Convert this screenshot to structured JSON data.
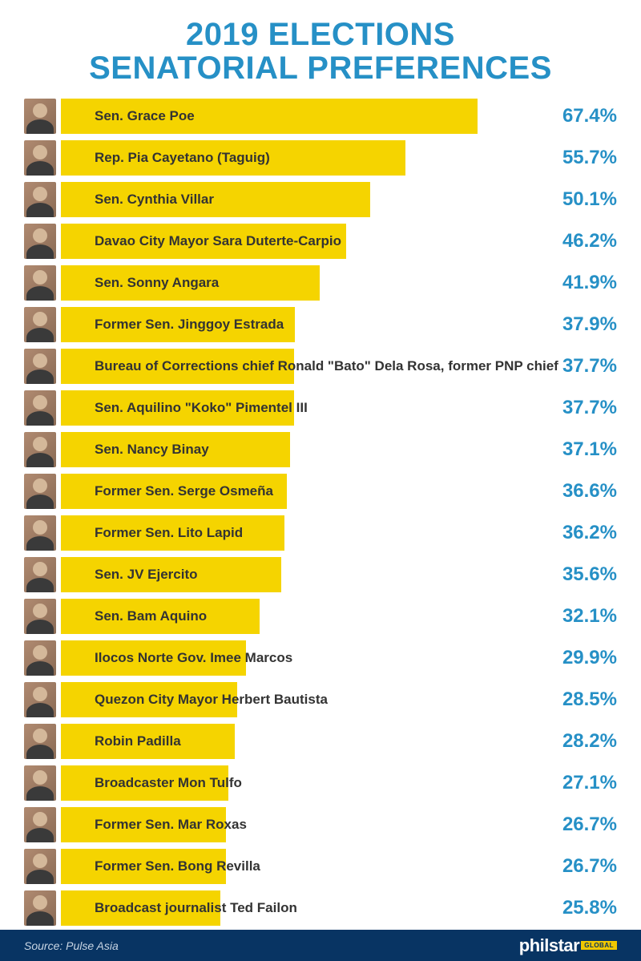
{
  "title": "2019 ELECTIONS\nSENATORIAL PREFERENCES",
  "title_fontsize": 40,
  "title_color": "#2690c6",
  "source": "Source: Pulse Asia",
  "logo": {
    "main": "philstar",
    "sub": "GLOBAL"
  },
  "chart": {
    "type": "bar",
    "orientation": "horizontal",
    "bar_color": "#f5d400",
    "background_color": "#ffffff",
    "max_value": 90,
    "label_fontsize": 17,
    "label_color": "#333333",
    "pct_fontsize": 24,
    "pct_color": "#2690c6",
    "footer_bg": "#083463",
    "rows": [
      {
        "name": "Sen. Grace Poe",
        "pct": 67.4
      },
      {
        "name": "Rep. Pia Cayetano (Taguig)",
        "pct": 55.7
      },
      {
        "name": "Sen. Cynthia Villar",
        "pct": 50.1
      },
      {
        "name": "Davao City Mayor Sara Duterte-Carpio",
        "pct": 46.2
      },
      {
        "name": "Sen. Sonny Angara",
        "pct": 41.9
      },
      {
        "name": "Former Sen. Jinggoy Estrada",
        "pct": 37.9
      },
      {
        "name": "Bureau of Corrections chief Ronald \"Bato\" Dela Rosa, former PNP chief",
        "pct": 37.7
      },
      {
        "name": "Sen. Aquilino \"Koko\" Pimentel III",
        "pct": 37.7
      },
      {
        "name": "Sen. Nancy Binay",
        "pct": 37.1
      },
      {
        "name": "Former Sen. Serge Osmeña",
        "pct": 36.6
      },
      {
        "name": "Former Sen. Lito Lapid",
        "pct": 36.2
      },
      {
        "name": "Sen. JV Ejercito",
        "pct": 35.6
      },
      {
        "name": "Sen. Bam Aquino",
        "pct": 32.1
      },
      {
        "name": "Ilocos Norte Gov. Imee Marcos",
        "pct": 29.9
      },
      {
        "name": "Quezon City Mayor Herbert Bautista",
        "pct": 28.5
      },
      {
        "name": "Robin Padilla",
        "pct": 28.2
      },
      {
        "name": "Broadcaster Mon Tulfo",
        "pct": 27.1
      },
      {
        "name": "Former Sen. Mar Roxas",
        "pct": 26.7
      },
      {
        "name": "Former Sen. Bong Revilla",
        "pct": 26.7
      },
      {
        "name": "Broadcast journalist Ted Failon",
        "pct": 25.8
      }
    ]
  }
}
